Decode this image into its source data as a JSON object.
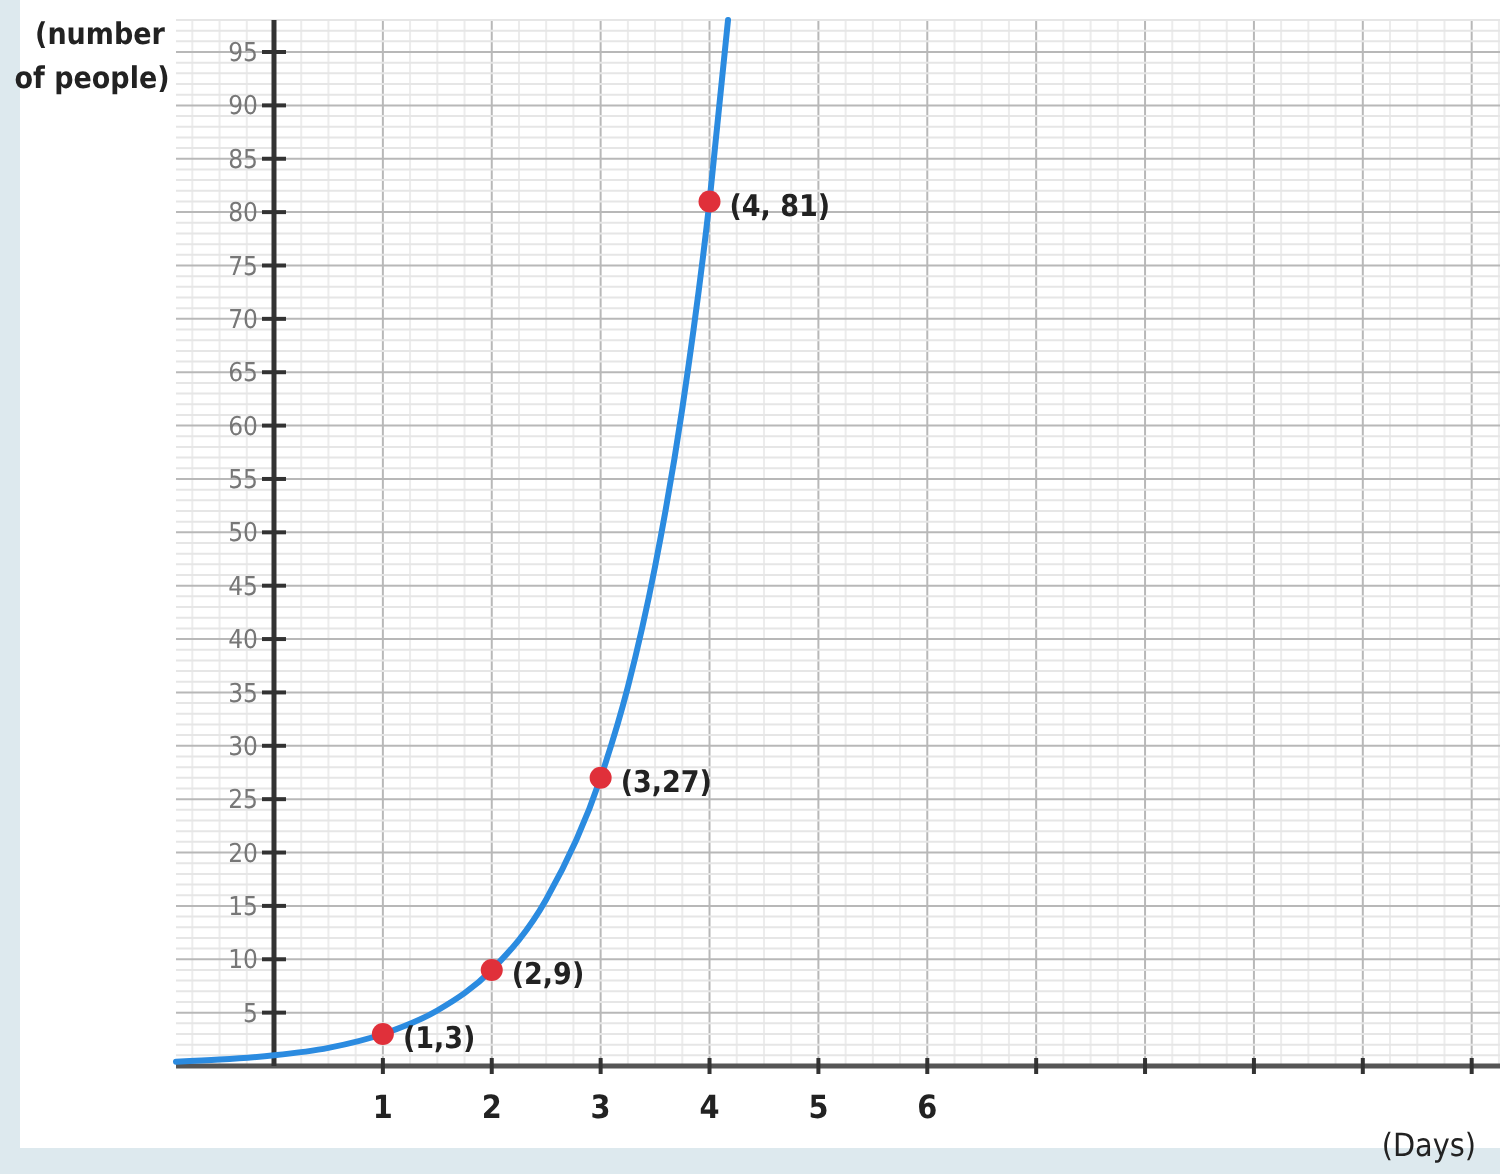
{
  "chart_data": {
    "type": "line",
    "xlabel": "(Days)",
    "ylabel": "(number of people)",
    "xlim": [
      -0.9,
      11.26
    ],
    "ylim": [
      0,
      98
    ],
    "xticks": [
      1,
      2,
      3,
      4,
      5,
      6,
      {
        "value": 7,
        "label": null
      },
      {
        "value": 8,
        "label": null
      },
      {
        "value": 9,
        "label": null
      },
      {
        "value": 10,
        "label": null
      },
      {
        "value": 11,
        "label": null
      }
    ],
    "yticks": [
      5,
      10,
      15,
      20,
      25,
      30,
      35,
      40,
      45,
      50,
      55,
      60,
      65,
      70,
      75,
      80,
      85,
      90,
      95
    ],
    "grid": true,
    "series": [
      {
        "color": "#2b8be0",
        "marker": "none",
        "line_style": "solid",
        "x": [
          -0.9,
          -0.5,
          0,
          0.5,
          1,
          1.5,
          2,
          2.5,
          3,
          3.25,
          3.5,
          3.75,
          4,
          4.17
        ],
        "values": [
          0.4,
          0.6,
          1,
          1.7,
          3,
          5.2,
          9,
          15.6,
          27,
          35.5,
          46.8,
          61.6,
          81,
          98
        ]
      },
      {
        "type": "scatter",
        "color": "#e0303a",
        "marker": "circle",
        "x": [
          1,
          2,
          3,
          4
        ],
        "values": [
          3,
          9,
          27,
          81
        ]
      }
    ],
    "annotations": [
      {
        "text": "(1,3)",
        "x": 1,
        "y": 3
      },
      {
        "text": "(2,9)",
        "x": 2,
        "y": 9
      },
      {
        "text": "(3,27)",
        "x": 3,
        "y": 27
      },
      {
        "text": "(4, 81)",
        "x": 4,
        "y": 81
      }
    ]
  }
}
